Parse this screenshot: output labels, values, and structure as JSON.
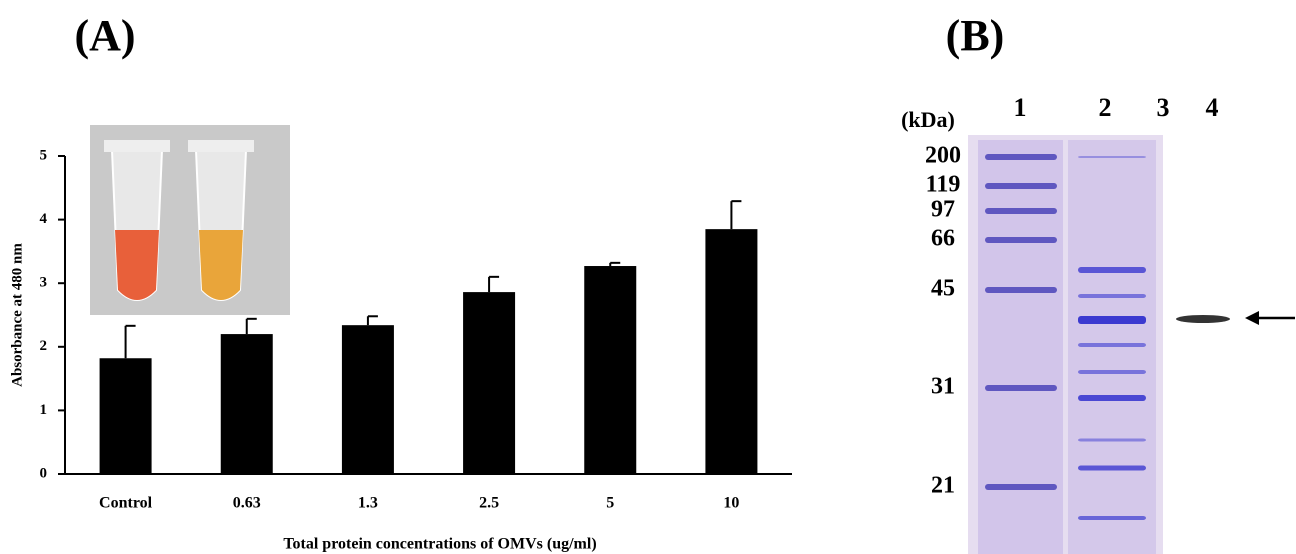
{
  "chart_data": {
    "type": "bar",
    "panel_label": "(A)",
    "x_label": "Total protein concentrations of OMVs (ug/ml)",
    "y_label": "Absorbance at 480 nm",
    "categories": [
      "Control",
      "0.63",
      "1.3",
      "2.5",
      "5",
      "10"
    ],
    "values": [
      1.82,
      2.2,
      2.34,
      2.86,
      3.27,
      3.85
    ],
    "errors": [
      0.51,
      0.24,
      0.14,
      0.24,
      0.05,
      0.44
    ],
    "color": "#000000",
    "ylim": [
      0,
      5
    ],
    "yticks": [
      0,
      1,
      2,
      3,
      4,
      5
    ]
  },
  "gel": {
    "panel_label": "(B)",
    "unit_label": "(kDa)",
    "markers": [
      200,
      119,
      97,
      66,
      45,
      31,
      21
    ],
    "lanes": [
      "1",
      "2",
      "3",
      "4"
    ]
  }
}
